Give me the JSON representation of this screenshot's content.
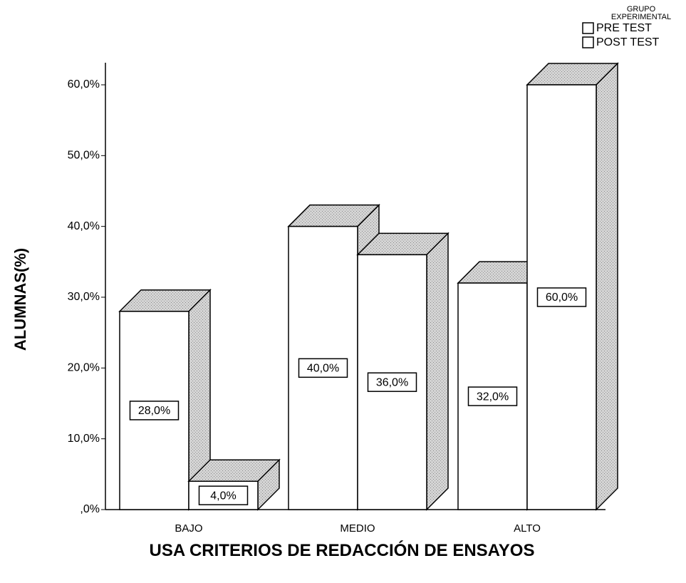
{
  "chart_data": {
    "type": "bar3d",
    "x_label": "USA CRITERIOS DE REDACCIÓN DE ENSAYOS",
    "y_label": "ALUMNAS(%)",
    "legend_title": "GRUPO EXPERIMENTAL",
    "legend_position": "top-right",
    "categories": [
      "BAJO",
      "MEDIO",
      "ALTO"
    ],
    "series": [
      {
        "name": "PRE TEST",
        "color": "#ffffff",
        "values": [
          28,
          40,
          32
        ],
        "value_labels": [
          "28,0%",
          "40,0%",
          "32,0%"
        ]
      },
      {
        "name": "POST TEST",
        "color": "#ffffff",
        "values": [
          4,
          36,
          60
        ],
        "value_labels": [
          "4,0%",
          "36,0%",
          "60,0%"
        ]
      }
    ],
    "ylim": [
      0,
      60
    ],
    "yticks": [
      {
        "value": 0,
        "label": ",0%"
      },
      {
        "value": 10,
        "label": "10,0%"
      },
      {
        "value": 20,
        "label": "20,0%"
      },
      {
        "value": 30,
        "label": "30,0%"
      },
      {
        "value": 40,
        "label": "40,0%"
      },
      {
        "value": 50,
        "label": "50,0%"
      },
      {
        "value": 60,
        "label": "60,0%"
      }
    ]
  }
}
